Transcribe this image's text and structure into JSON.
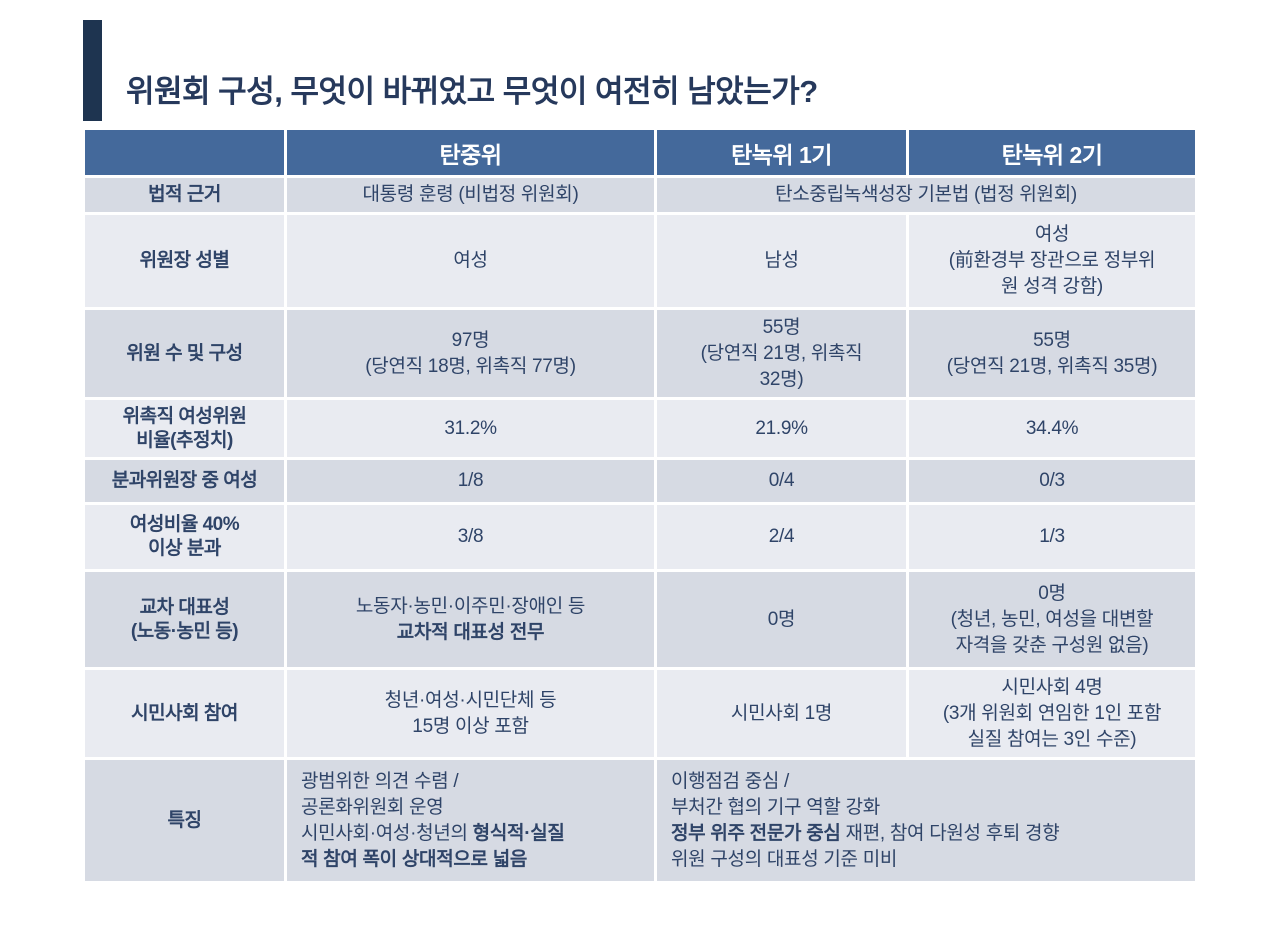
{
  "colors": {
    "accent_navy": "#1e3450",
    "title_navy": "#26395c",
    "header_bg": "#44699b",
    "row_dark": "#d6dae3",
    "row_light": "#e9ebf1",
    "text_navy": "#2f4468"
  },
  "title": "위원회 구성, 무엇이 바뀌었고 무엇이 여전히 남았는가?",
  "table": {
    "columns": [
      "",
      "탄중위",
      "탄녹위 1기",
      "탄녹위 2기"
    ],
    "rows": [
      {
        "label": "법적 근거",
        "cells": [
          "대통령 훈령 (비법정 위원회)",
          "탄소중립녹색성장 기본법 (법정 위원회)"
        ]
      },
      {
        "label": "위원장 성별",
        "cells": [
          "여성",
          "남성",
          "여성\n(前환경부 장관으로 정부위\n원 성격 강함)"
        ]
      },
      {
        "label": "위원 수 및 구성",
        "cells": [
          "97명\n(당연직 18명, 위촉직 77명)",
          "55명\n(당연직 21명, 위촉직\n32명)",
          "55명\n(당연직 21명, 위촉직 35명)"
        ]
      },
      {
        "label": "위촉직 여성위원\n비율(추정치)",
        "cells": [
          "31.2%",
          "21.9%",
          "34.4%"
        ]
      },
      {
        "label": "분과위원장 중 여성",
        "cells": [
          "1/8",
          "0/4",
          "0/3"
        ]
      },
      {
        "label": "여성비율 40%\n이상 분과",
        "cells": [
          "3/8",
          "2/4",
          "1/3"
        ]
      },
      {
        "label": "교차 대표성\n(노동·농민 등)",
        "rich0": [
          [
            {
              "t": "노동자·농민·이주민·장애인 등"
            }
          ],
          [
            {
              "t": "교차적 대표성 전무",
              "b": true
            }
          ]
        ],
        "cells": [
          "0명",
          "0명\n(청년, 농민, 여성을 대변할\n자격을 갖춘 구성원 없음)"
        ]
      },
      {
        "label": "시민사회 참여",
        "cells": [
          "청년·여성·시민단체 등\n15명 이상 포함",
          "시민사회 1명",
          "시민사회 4명\n(3개 위원회 연임한 1인 포함\n실질 참여는 3인 수준)"
        ]
      },
      {
        "label": "특징",
        "rich0": [
          [
            {
              "t": "광범위한 의견 수렴 /"
            }
          ],
          [
            {
              "t": "공론화위원회 운영"
            }
          ],
          [
            {
              "t": "시민사회·여성·청년의 "
            },
            {
              "t": "형식적·실질",
              "b": true
            }
          ],
          [
            {
              "t": "적 참여 폭이 상대적으로 넓음",
              "b": true
            }
          ]
        ],
        "rich1": [
          [
            {
              "t": "이행점검 중심 /"
            }
          ],
          [
            {
              "t": "부처간 협의 기구 역할 강화"
            }
          ],
          [
            {
              "t": "정부 위주 전문가 중심",
              "b": true
            },
            {
              "t": " 재편, 참여 다원성 후퇴 경향"
            }
          ],
          [
            {
              "t": "위원 구성의 대표성 기준 미비"
            }
          ]
        ]
      }
    ]
  }
}
